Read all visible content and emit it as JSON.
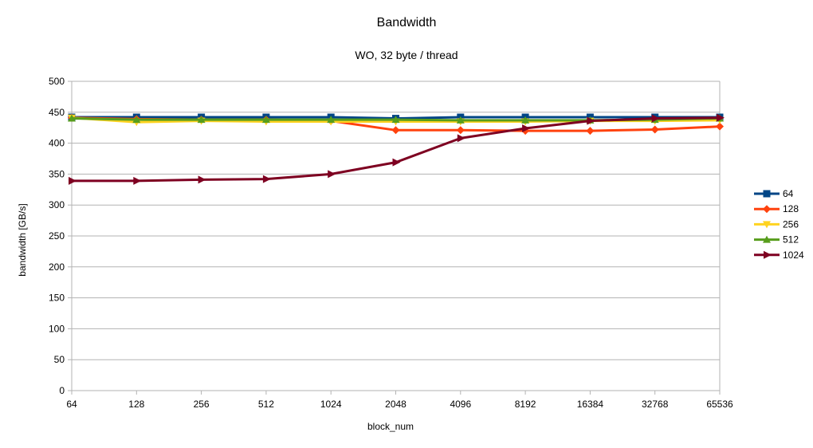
{
  "chart_data": {
    "type": "line",
    "title": "Bandwidth",
    "subtitle": "WO, 32 byte / thread",
    "xlabel": "block_num",
    "ylabel": "bandwidth [GB/s]",
    "categories": [
      "64",
      "128",
      "256",
      "512",
      "1024",
      "2048",
      "4096",
      "8192",
      "16384",
      "32768",
      "65536"
    ],
    "ylim": [
      0,
      500
    ],
    "yticks": [
      0,
      50,
      100,
      150,
      200,
      250,
      300,
      350,
      400,
      450,
      500
    ],
    "grid": "horizontal",
    "legend_position": "right",
    "series": [
      {
        "name": "64",
        "color": "#004586",
        "marker": "square",
        "values": [
          442,
          442,
          442,
          442,
          442,
          440,
          442,
          442,
          442,
          442,
          442
        ]
      },
      {
        "name": "128",
        "color": "#ff420e",
        "marker": "diamond",
        "values": [
          441,
          439,
          438,
          438,
          436,
          421,
          421,
          420,
          420,
          422,
          427
        ]
      },
      {
        "name": "256",
        "color": "#ffd320",
        "marker": "triangle-down",
        "values": [
          441,
          434,
          436,
          435,
          435,
          435,
          435,
          435,
          436,
          436,
          437
        ]
      },
      {
        "name": "512",
        "color": "#579d1c",
        "marker": "triangle-up",
        "values": [
          440,
          438,
          438,
          438,
          438,
          438,
          437,
          437,
          437,
          438,
          440
        ]
      },
      {
        "name": "1024",
        "color": "#7e0021",
        "marker": "triangle-right",
        "values": [
          339,
          339,
          341,
          342,
          350,
          369,
          408,
          424,
          436,
          440,
          441
        ]
      }
    ]
  }
}
